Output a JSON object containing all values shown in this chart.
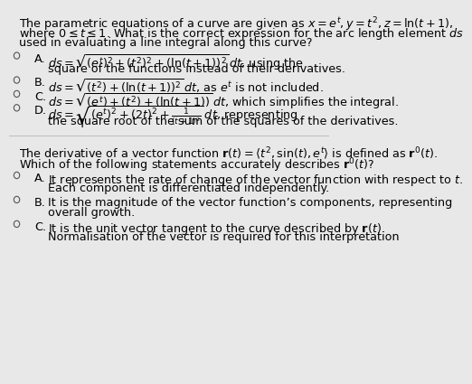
{
  "bg_color": "#e8e8e8",
  "text_color": "#000000",
  "body_fontsize": 9.2,
  "q1": {
    "question_lines": [
      "The parametric equations of a curve are given as $x = e^t, y = t^2, z = \\ln(t + 1)$,",
      "where $0 \\leq t \\leq 1$. What is the correct expression for the arc length element $ds$",
      "used in evaluating a line integral along this curve?"
    ],
    "options": [
      {
        "label": "A.",
        "lines": [
          "$ds = \\sqrt{(e^t)^2 + (t^2)^2 + (\\ln(t + 1))^2}\\, dt$, using the",
          "square of the functions instead of their derivatives."
        ]
      },
      {
        "label": "B.",
        "lines": [
          "$ds = \\sqrt{(t^2) + (\\ln(t + 1))^2}\\, dt$, as $e^t$ is not included."
        ]
      },
      {
        "label": "C.",
        "lines": [
          "$ds = \\sqrt{(e^t) + (t^2) + (\\ln(t + 1))}\\, dt$, which simplifies the integral."
        ]
      },
      {
        "label": "D.",
        "lines": [
          "$ds = \\sqrt{(e^t)^2 + (2t)^2 + \\frac{1}{(t+1)^2}}\\, dt$, representing",
          "the square root of the sum of the squares of the derivatives."
        ]
      }
    ]
  },
  "q2": {
    "question_lines": [
      "The derivative of a vector function $\\mathbf{r}(t) = \\langle t^2, \\sin(t), e^t \\rangle$ is defined as $\\mathbf{r}'(t)$.",
      "Which of the following statements accurately describes $\\mathbf{r}'(t)$?"
    ],
    "options": [
      {
        "label": "A.",
        "lines": [
          "It represents the rate of change of the vector function with respect to $t$.",
          "Each component is differentiated independently."
        ]
      },
      {
        "label": "B.",
        "lines": [
          "It is the magnitude of the vector function’s components, representing",
          "overall growth."
        ]
      },
      {
        "label": "C.",
        "lines": [
          "It is the unit vector tangent to the curve described by $\\mathbf{r}(t)$.",
          "Normalisation of the vector is required for this interpretation"
        ]
      }
    ]
  }
}
